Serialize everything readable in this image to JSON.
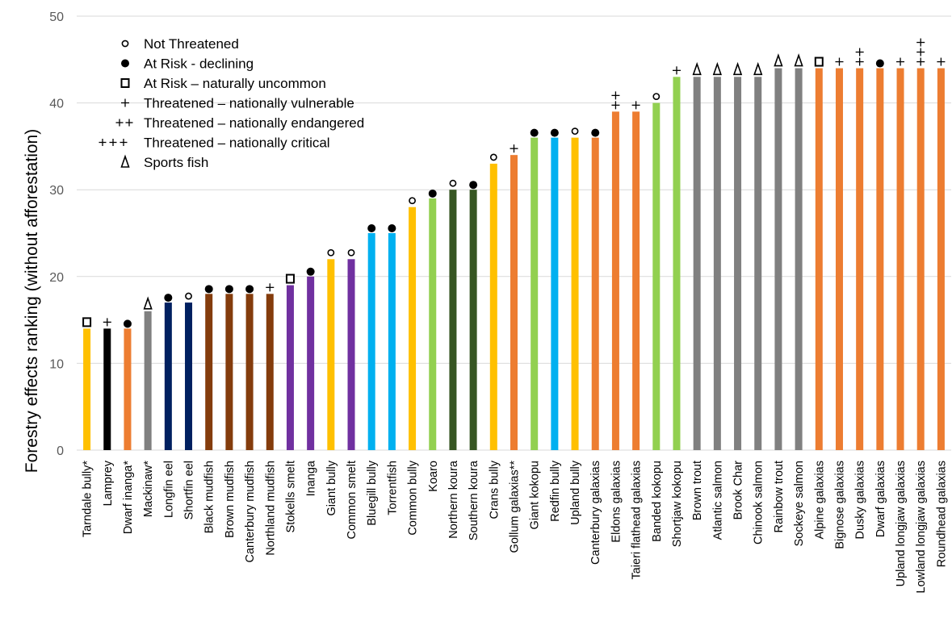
{
  "chart_data": {
    "type": "bar",
    "title": "",
    "xlabel": "",
    "ylabel": "Forestry effects ranking (without afforestation)",
    "ylim": [
      0,
      50
    ],
    "yticks": [
      0,
      10,
      20,
      30,
      40,
      50
    ],
    "grid": true,
    "legend_position": "top-left",
    "legend": [
      {
        "symbol": "not-threatened",
        "label": "Not Threatened"
      },
      {
        "symbol": "at-risk-declining",
        "label": "At Risk  - declining"
      },
      {
        "symbol": "naturally-uncommon",
        "label": "At Risk – naturally uncommon"
      },
      {
        "symbol": "vulnerable",
        "label": "Threatened – nationally vulnerable"
      },
      {
        "symbol": "endangered",
        "label": "Threatened – nationally endangered"
      },
      {
        "symbol": "critical",
        "label": "Threatened – nationally critical"
      },
      {
        "symbol": "sports-fish",
        "label": "Sports fish"
      }
    ],
    "categories": [
      "Tarndale bully*",
      "Lamprey",
      "Dwarf inanga*",
      "Mackinaw*",
      "Longfin eel",
      "Shortfin eel",
      "Black mudfish",
      "Brown mudfish",
      "Canterbury mudfish",
      "Northland mudfish",
      "Stokells smelt",
      "Inanga",
      "Giant bully",
      "Common smelt",
      "Bluegill bully",
      "Torrentfish",
      "Common bully",
      "Koaro",
      "Northern koura",
      "Southern koura",
      "Crans bully",
      "Gollum galaxias**",
      "Giant kokopu",
      "Redfin bully",
      "Upland bully",
      "Canterbury galaxias",
      "Eldons galaxias",
      "Taieri flathead galaxias",
      "Banded kokopu",
      "Shortjaw kokopu",
      "Brown trout",
      "Atlantic salmon",
      "Brook Char",
      "Chinook salmon",
      "Rainbow trout",
      "Sockeye salmon",
      "Alpine galaxias",
      "Bignose galaxias",
      "Dusky galaxias",
      "Dwarf galaxias",
      "Upland longjaw galaxias",
      "Lowland longjaw galaxias",
      "Roundhead galaxias"
    ],
    "values": [
      14,
      14,
      14,
      16,
      17,
      17,
      18,
      18,
      18,
      18,
      19,
      20,
      22,
      22,
      25,
      25,
      28,
      29,
      30,
      30,
      33,
      34,
      36,
      36,
      36,
      36,
      39,
      39,
      40,
      43,
      43,
      43,
      43,
      43,
      44,
      44,
      44,
      44,
      44,
      44,
      44,
      44,
      44
    ],
    "colors": [
      "#FFC000",
      "#000000",
      "#ED7D31",
      "#808080",
      "#002060",
      "#002060",
      "#843C0C",
      "#843C0C",
      "#843C0C",
      "#843C0C",
      "#7030A0",
      "#7030A0",
      "#FFC000",
      "#7030A0",
      "#00B0F0",
      "#00B0F0",
      "#FFC000",
      "#92D050",
      "#375623",
      "#375623",
      "#FFC000",
      "#ED7D31",
      "#92D050",
      "#00B0F0",
      "#FFC000",
      "#ED7D31",
      "#ED7D31",
      "#ED7D31",
      "#92D050",
      "#92D050",
      "#808080",
      "#808080",
      "#808080",
      "#808080",
      "#808080",
      "#808080",
      "#ED7D31",
      "#ED7D31",
      "#ED7D31",
      "#ED7D31",
      "#ED7D31",
      "#ED7D31",
      "#ED7D31"
    ],
    "status": [
      "naturally-uncommon",
      "vulnerable",
      "at-risk-declining",
      "sports-fish",
      "at-risk-declining",
      "not-threatened",
      "at-risk-declining",
      "at-risk-declining",
      "at-risk-declining",
      "vulnerable",
      "naturally-uncommon",
      "at-risk-declining",
      "not-threatened",
      "not-threatened",
      "at-risk-declining",
      "at-risk-declining",
      "not-threatened",
      "at-risk-declining",
      "not-threatened",
      "at-risk-declining",
      "not-threatened",
      "vulnerable",
      "at-risk-declining",
      "at-risk-declining",
      "not-threatened",
      "at-risk-declining",
      "endangered",
      "vulnerable",
      "not-threatened",
      "vulnerable",
      "sports-fish",
      "sports-fish",
      "sports-fish",
      "sports-fish",
      "sports-fish",
      "sports-fish",
      "naturally-uncommon",
      "vulnerable",
      "endangered",
      "at-risk-declining",
      "vulnerable",
      "critical",
      "vulnerable"
    ]
  }
}
